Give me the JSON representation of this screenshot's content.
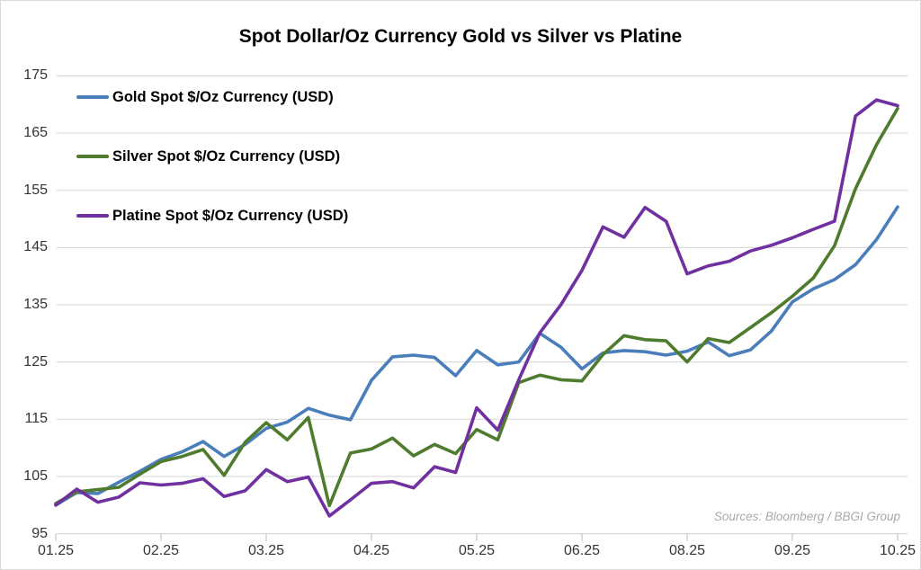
{
  "title": "Spot Dollar/Oz Currency Gold vs Silver vs Platine",
  "source_note": "Sources: Bloomberg / BBGI Group",
  "colors": {
    "gold_line": "#4a7ebb",
    "silver_line": "#4e7b2d",
    "platine_line": "#7030a0",
    "gridline": "#d9d9d9",
    "tick": "#c6c6c6",
    "axis_text": "#333333",
    "title_text": "#000000",
    "source_text": "#a9a9a9"
  },
  "legend": {
    "position": "top-left",
    "items": [
      {
        "label": "Gold Spot $/Oz Currency (USD)",
        "color": "#4a7ebb"
      },
      {
        "label": "Silver Spot $/Oz Currency (USD)",
        "color": "#4e7b2d"
      },
      {
        "label": "Platine Spot $/Oz Currency (USD)",
        "color": "#7030a0"
      }
    ]
  },
  "chart_data": {
    "type": "line",
    "title": "Spot Dollar/Oz Currency Gold vs Silver vs Platine",
    "xlabel": "",
    "ylabel": "",
    "ylim": [
      95,
      175
    ],
    "y_ticks": [
      95,
      105,
      115,
      125,
      135,
      145,
      155,
      165,
      175
    ],
    "grid": "horizontal",
    "x_point_count": 41,
    "x_tick_labels": [
      "01.25",
      "02.25",
      "03.25",
      "04.25",
      "05.25",
      "06.25",
      "08.25",
      "09.25",
      "10.25"
    ],
    "x_tick_indices": [
      0,
      5,
      10,
      15,
      20,
      25,
      30,
      35,
      40
    ],
    "legend_position": "top-left",
    "series": [
      {
        "name": "Gold Spot $/Oz Currency (USD)",
        "color": "#4a7ebb",
        "values": [
          100.0,
          102.2,
          102.0,
          104.0,
          105.9,
          108.0,
          109.3,
          111.1,
          108.5,
          110.6,
          113.4,
          114.5,
          116.9,
          115.7,
          114.9,
          121.8,
          125.9,
          126.2,
          125.8,
          122.6,
          127.0,
          124.5,
          125.0,
          130.0,
          127.6,
          123.8,
          126.6,
          127.0,
          126.8,
          126.2,
          126.9,
          128.5,
          126.1,
          127.1,
          130.4,
          135.5,
          137.8,
          139.4,
          142.0,
          146.4,
          152.1
        ]
      },
      {
        "name": "Silver Spot $/Oz Currency (USD)",
        "color": "#4e7b2d",
        "values": [
          100.3,
          102.3,
          102.7,
          103.1,
          105.4,
          107.6,
          108.5,
          109.7,
          105.2,
          111.0,
          114.4,
          111.4,
          115.3,
          99.9,
          109.1,
          109.8,
          111.7,
          108.6,
          110.6,
          109.0,
          113.2,
          111.4,
          121.4,
          122.7,
          121.9,
          121.7,
          126.3,
          129.6,
          128.9,
          128.7,
          125.0,
          129.1,
          128.4,
          131.0,
          133.6,
          136.5,
          139.7,
          145.3,
          155.3,
          163.0,
          169.3
        ]
      },
      {
        "name": "Platine Spot $/Oz Currency (USD)",
        "color": "#7030a0",
        "values": [
          100.0,
          102.8,
          100.5,
          101.4,
          103.9,
          103.5,
          103.8,
          104.6,
          101.5,
          102.5,
          106.2,
          104.1,
          104.9,
          98.1,
          100.9,
          103.8,
          104.1,
          103.0,
          106.7,
          105.7,
          117.0,
          113.1,
          121.9,
          130.1,
          135.0,
          141.0,
          148.6,
          146.8,
          152.0,
          149.6,
          140.4,
          141.8,
          142.6,
          144.4,
          145.4,
          146.7,
          148.2,
          149.6,
          168.0,
          170.8,
          169.8
        ]
      }
    ]
  }
}
